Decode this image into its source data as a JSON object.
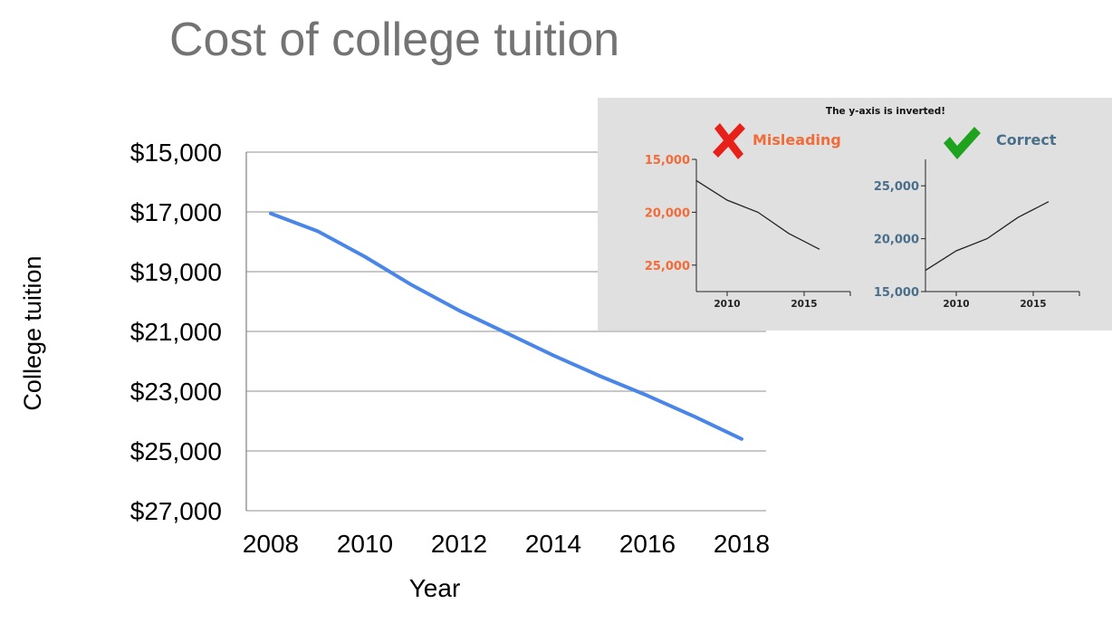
{
  "page": {
    "title": "Cost of college tuition"
  },
  "colors": {
    "main_line": "#4a86e8",
    "misleading": "#f26b38",
    "correct": "#4a6f8a",
    "inset_bg": "#e0e0e0",
    "gridline": "#a6a6a6",
    "cross_icon": "#e8201a",
    "check_icon": "#1fa31f"
  },
  "chart_data": [
    {
      "type": "line",
      "title": "Cost of college tuition",
      "xlabel": "Year",
      "ylabel": "College tuition",
      "inverted_y": true,
      "ylim": [
        15000,
        27000
      ],
      "xlim": [
        2008,
        2018
      ],
      "x_ticks": [
        "2008",
        "2010",
        "2012",
        "2014",
        "2016",
        "2018"
      ],
      "y_ticks": [
        "$15,000",
        "$17,000",
        "$19,000",
        "$21,000",
        "$23,000",
        "$25,000",
        "$27,000"
      ],
      "grid": true,
      "series": [
        {
          "x": [
            2008,
            2009,
            2010,
            2011,
            2012,
            2013,
            2014,
            2015,
            2016,
            2017,
            2018
          ],
          "values": [
            17050,
            17650,
            18500,
            19450,
            20300,
            21050,
            21800,
            22500,
            23150,
            23850,
            24600
          ]
        }
      ]
    },
    {
      "type": "line",
      "title": "The y-axis is inverted!",
      "panel_label": "Misleading",
      "inverted_y": true,
      "ylim": [
        15000,
        27500
      ],
      "xlim": [
        2008,
        2018
      ],
      "x_ticks": [
        "2010",
        "2015"
      ],
      "y_ticks": [
        "15,000",
        "20,000",
        "25,000"
      ],
      "series": [
        {
          "x": [
            2008,
            2010,
            2012,
            2014,
            2016
          ],
          "values": [
            17000,
            18850,
            20000,
            22000,
            23500
          ]
        }
      ]
    },
    {
      "type": "line",
      "panel_label": "Correct",
      "inverted_y": false,
      "ylim": [
        15000,
        27500
      ],
      "xlim": [
        2008,
        2018
      ],
      "x_ticks": [
        "2010",
        "2015"
      ],
      "y_ticks": [
        "15,000",
        "20,000",
        "25,000"
      ],
      "series": [
        {
          "x": [
            2008,
            2010,
            2012,
            2014,
            2016
          ],
          "values": [
            17000,
            18850,
            20000,
            22000,
            23500
          ]
        }
      ]
    }
  ]
}
